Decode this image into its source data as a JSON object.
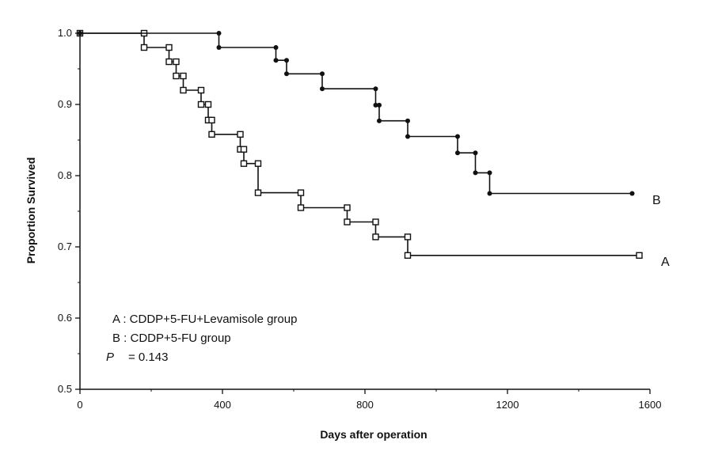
{
  "chart_data": {
    "type": "line",
    "xlabel": "Days after operation",
    "ylabel": "Proportion Survived",
    "xlim": [
      0,
      1600
    ],
    "ylim": [
      0.5,
      1.0
    ],
    "xticks": [
      "0",
      "400",
      "800",
      "1200",
      "1600"
    ],
    "yticks": [
      "0.5",
      "0.6",
      "0.7",
      "0.8",
      "0.9",
      "1.0"
    ],
    "grid": false,
    "series": [
      {
        "name": "A",
        "marker": "square",
        "step": true,
        "color": "#111111",
        "x": [
          0,
          180,
          250,
          270,
          290,
          340,
          360,
          370,
          450,
          460,
          500,
          620,
          750,
          830,
          920,
          1570
        ],
        "y": [
          1.0,
          0.98,
          0.96,
          0.94,
          0.92,
          0.9,
          0.878,
          0.858,
          0.837,
          0.817,
          0.776,
          0.755,
          0.735,
          0.714,
          0.688,
          0.688
        ]
      },
      {
        "name": "B",
        "marker": "circle",
        "step": true,
        "color": "#111111",
        "x": [
          0,
          390,
          550,
          580,
          680,
          830,
          840,
          920,
          1060,
          1110,
          1150,
          1550
        ],
        "y": [
          1.0,
          0.98,
          0.962,
          0.943,
          0.922,
          0.899,
          0.877,
          0.855,
          0.832,
          0.804,
          0.775,
          0.775
        ]
      }
    ],
    "legend": {
      "placement": "lower-left",
      "entries": [
        "A : CDDP+5-FU+Levamisole group",
        "B : CDDP+5-FU group"
      ],
      "p_label": "P",
      "p_value": "= 0.143"
    }
  }
}
